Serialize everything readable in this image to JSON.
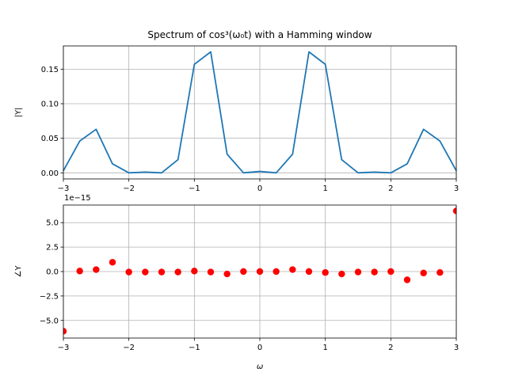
{
  "chart_data": [
    {
      "type": "line",
      "title": "Spectrum of cos³(ω₀t) with a Hamming window",
      "xlabel": "",
      "ylabel": "|Y|",
      "xlim": [
        -3,
        3
      ],
      "ylim": [
        -0.0088,
        0.1836
      ],
      "x_ticks": [
        -3,
        -2,
        -1,
        0,
        1,
        2,
        3
      ],
      "y_ticks": [
        0.0,
        0.05,
        0.1,
        0.15
      ],
      "grid": true,
      "color": "#1f77b4",
      "series": [
        {
          "x": [
            -3,
            -2.75,
            -2.5,
            -2.25,
            -2,
            -1.75,
            -1.5,
            -1.25,
            -1,
            -0.75,
            -0.5,
            -0.25,
            0,
            0.25,
            0.5,
            0.75,
            1,
            1.25,
            1.5,
            1.75,
            2,
            2.25,
            2.5,
            2.75,
            3
          ],
          "y": [
            0.003,
            0.046,
            0.063,
            0.013,
            0.0,
            0.001,
            0.0,
            0.019,
            0.157,
            0.175,
            0.027,
            0.0,
            0.002,
            0.0,
            0.027,
            0.175,
            0.157,
            0.019,
            0.0,
            0.001,
            0.0,
            0.013,
            0.063,
            0.046,
            0.003
          ]
        }
      ]
    },
    {
      "type": "scatter",
      "title": "",
      "xlabel": "ω",
      "ylabel": "∠Y",
      "offset_label": "1e−15",
      "xlim": [
        -3,
        3
      ],
      "ylim": [
        -6.8,
        6.8
      ],
      "x_ticks": [
        -3,
        -2,
        -1,
        0,
        1,
        2,
        3
      ],
      "y_ticks": [
        -5.0,
        -2.5,
        0.0,
        2.5,
        5.0
      ],
      "grid": true,
      "color": "#ff0000",
      "series": [
        {
          "x": [
            -3,
            -2.75,
            -2.5,
            -2.25,
            -2,
            -1.75,
            -1.5,
            -1.25,
            -1,
            -0.75,
            -0.5,
            -0.25,
            0,
            0.25,
            0.5,
            0.75,
            1,
            1.25,
            1.5,
            1.75,
            2,
            2.25,
            2.5,
            2.75,
            3
          ],
          "y": [
            -6.1,
            0.05,
            0.2,
            0.95,
            -0.05,
            -0.05,
            -0.05,
            -0.05,
            0.05,
            -0.05,
            -0.25,
            0.0,
            0.0,
            0.0,
            0.2,
            0.0,
            -0.1,
            -0.25,
            -0.05,
            -0.05,
            0.0,
            -0.85,
            -0.15,
            -0.1,
            6.2
          ]
        }
      ]
    }
  ]
}
